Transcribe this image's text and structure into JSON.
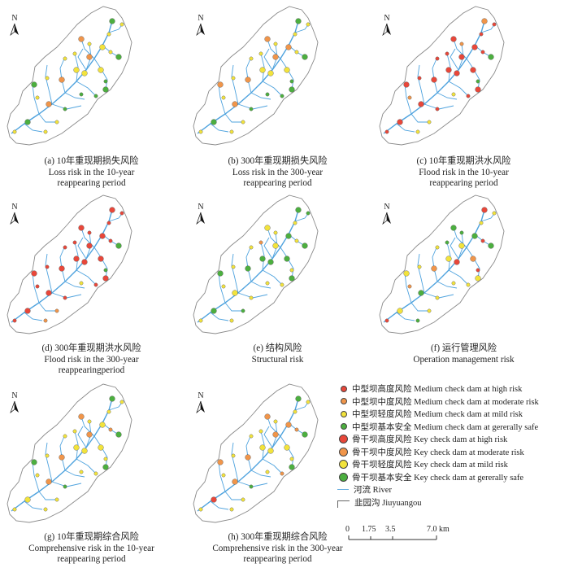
{
  "panels": [
    {
      "id": "a",
      "caption": "(a) 10年重现期损失风险\nLoss risk in the 10-year\nreappearing period",
      "scheme": "loss10"
    },
    {
      "id": "b",
      "caption": "(b) 300年重现期损失风险\nLoss risk in the 300-year\nreappearing period",
      "scheme": "loss300"
    },
    {
      "id": "c",
      "caption": "(c) 10年重现期洪水风险\nFlood risk in the 10-year\nreappearing period",
      "scheme": "flood10"
    },
    {
      "id": "d",
      "caption": "(d) 300年重现期洪水风险\nFlood risk in the 300-year\nreappearingperiod",
      "scheme": "flood300"
    },
    {
      "id": "e",
      "caption": "(e) 结构风险\nStructural risk",
      "scheme": "struct"
    },
    {
      "id": "f",
      "caption": "(f) 运行管理风险\nOperation management risk",
      "scheme": "oper"
    },
    {
      "id": "g",
      "caption": "(g) 10年重现期综合风险\nComprehensive risk in the 10-year\nreappearing period",
      "scheme": "comp10"
    },
    {
      "id": "h",
      "caption": "(h) 300年重现期综合风险\nComprehensive risk in the  300-year\nreappearing period",
      "scheme": "comp300"
    }
  ],
  "north_label": "N",
  "legend": {
    "items": [
      {
        "label": "中型坝高度风险 Medium check dam at high risk",
        "color": "#e8473a",
        "size": "small"
      },
      {
        "label": "中型坝中度风险 Medium check dam at moderate risk",
        "color": "#f0954a",
        "size": "small"
      },
      {
        "label": "中型坝轻度风险 Medium check dam at mild risk",
        "color": "#f2e33c",
        "size": "small"
      },
      {
        "label": "中型坝基本安全 Medium check dam at gererally safe",
        "color": "#4caf3f",
        "size": "small"
      },
      {
        "label": "骨干坝高度风险 Key check dam at high risk",
        "color": "#e8473a",
        "size": "large"
      },
      {
        "label": "骨干坝中度风险 Key check dam at moderate risk",
        "color": "#f0954a",
        "size": "large"
      },
      {
        "label": "骨干坝轻度风险 Key check dam at mild risk",
        "color": "#f2e33c",
        "size": "large"
      },
      {
        "label": "骨干坝基本安全 Key check dam at gererally safe",
        "color": "#4caf3f",
        "size": "large"
      }
    ],
    "river_label": "河流 River",
    "boundary_label": "韭园沟 Jiuyuangou"
  },
  "scale": {
    "ticks": [
      "0",
      "1.75",
      "3.5",
      "7.0 km"
    ]
  },
  "colors": {
    "river": "#4fa3de",
    "boundary": "#8a8a8a",
    "high": "#e8473a",
    "moderate": "#f0954a",
    "mild": "#f2e33c",
    "safe": "#4caf3f"
  }
}
